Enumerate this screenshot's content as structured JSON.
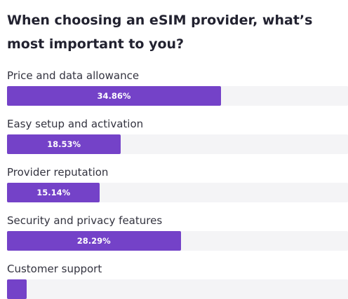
{
  "poll": {
    "title": "When choosing an eSIM provider, what’s most important to you?",
    "options": [
      {
        "label": "Price and data allowance",
        "percent_label": "34.86%",
        "value": 34.86
      },
      {
        "label": "Easy setup and activation",
        "percent_label": "18.53%",
        "value": 18.53
      },
      {
        "label": "Provider reputation",
        "percent_label": "15.14%",
        "value": 15.14
      },
      {
        "label": "Security and privacy features",
        "percent_label": "28.29%",
        "value": 28.29
      },
      {
        "label": "Customer support",
        "percent_label": "",
        "value": 3.18
      }
    ],
    "bar_color": "#7442c8",
    "track_color": "#f4f4f6"
  }
}
